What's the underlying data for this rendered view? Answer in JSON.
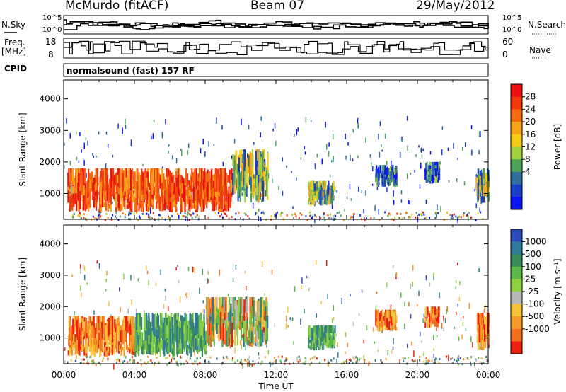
{
  "header": {
    "station": "McMurdo (fitACF)",
    "beam": "Beam 07",
    "date": "29/May/2012"
  },
  "summary_panels": {
    "nsky_label": "N.Sky",
    "nsky_ticks": [
      "10^5",
      "10^0"
    ],
    "nsearch_label": "N.Search",
    "nsearch_ticks": [
      "10^5",
      "10^0"
    ],
    "freq_label": "Freq.",
    "freq_unit": "[MHz]",
    "freq_ticks": [
      "18",
      "8"
    ],
    "nave_label": "Nave",
    "nave_ticks": [
      "60",
      "0"
    ],
    "cpid_label": "CPID",
    "cpid_value": "normalsound (fast) 157 RF"
  },
  "chart_data": [
    {
      "type": "heatmap",
      "name": "power",
      "ylabel": "Slant Range [km]",
      "yticks": [
        1000,
        2000,
        3000,
        4000
      ],
      "ylim": [
        180,
        4600
      ],
      "xlim_hours": [
        0,
        24
      ],
      "colorbar": {
        "label": "Power [dB]",
        "ticks": [
          "28",
          "24",
          "20",
          "16",
          "12",
          "8",
          "4"
        ],
        "colors": [
          "#e81010",
          "#f03a0e",
          "#f26a12",
          "#f6a21a",
          "#f2cc18",
          "#a4d042",
          "#4ea25a",
          "#2f6e9a",
          "#1a3ec8",
          "#0a14f0"
        ]
      },
      "echo_regions": [
        {
          "t_start": 0.2,
          "t_end": 9.5,
          "r_start": 400,
          "r_end": 1800,
          "level": "high"
        },
        {
          "t_start": 9.5,
          "t_end": 11.5,
          "r_start": 700,
          "r_end": 2400,
          "level": "mid"
        },
        {
          "t_start": 13.8,
          "t_end": 15.3,
          "r_start": 600,
          "r_end": 1400,
          "level": "mid"
        },
        {
          "t_start": 17.6,
          "t_end": 18.8,
          "r_start": 1200,
          "r_end": 1900,
          "level": "low"
        },
        {
          "t_start": 20.4,
          "t_end": 21.2,
          "r_start": 1300,
          "r_end": 2000,
          "level": "low"
        },
        {
          "t_start": 23.3,
          "t_end": 24.0,
          "r_start": 700,
          "r_end": 1800,
          "level": "mid"
        }
      ]
    },
    {
      "type": "heatmap",
      "name": "velocity",
      "ylabel": "Slant Range [km]",
      "yticks": [
        1000,
        2000,
        3000,
        4000
      ],
      "ylim": [
        180,
        4600
      ],
      "xlim_hours": [
        0,
        24
      ],
      "xlabel": "Time UT",
      "xticks": [
        "00:00",
        "04:00",
        "08:00",
        "12:00",
        "16:00",
        "20:00",
        "00:00"
      ],
      "colorbar": {
        "label": "Velocity [m s⁻¹]",
        "ticks": [
          "1000",
          "500",
          "100",
          "25",
          "-25",
          "-100",
          "-500",
          "-1000"
        ],
        "colors": [
          "#2a48b8",
          "#2f7a9a",
          "#3a8a5a",
          "#5ab848",
          "#8ed040",
          "#b8b8b8",
          "#f6c23a",
          "#f49a28",
          "#f0701c",
          "#ea2010"
        ]
      },
      "echo_regions": [
        {
          "t_start": 0.2,
          "t_end": 4.0,
          "r_start": 400,
          "r_end": 1700,
          "level": "neg"
        },
        {
          "t_start": 4.0,
          "t_end": 8.0,
          "r_start": 400,
          "r_end": 1800,
          "level": "pos"
        },
        {
          "t_start": 8.0,
          "t_end": 11.5,
          "r_start": 700,
          "r_end": 2300,
          "level": "mix"
        },
        {
          "t_start": 13.8,
          "t_end": 15.3,
          "r_start": 600,
          "r_end": 1400,
          "level": "pos"
        },
        {
          "t_start": 17.6,
          "t_end": 18.8,
          "r_start": 1200,
          "r_end": 1900,
          "level": "neg"
        },
        {
          "t_start": 20.4,
          "t_end": 21.2,
          "r_start": 1300,
          "r_end": 2000,
          "level": "neg"
        },
        {
          "t_start": 23.3,
          "t_end": 24.0,
          "r_start": 600,
          "r_end": 1800,
          "level": "neg"
        }
      ]
    }
  ]
}
